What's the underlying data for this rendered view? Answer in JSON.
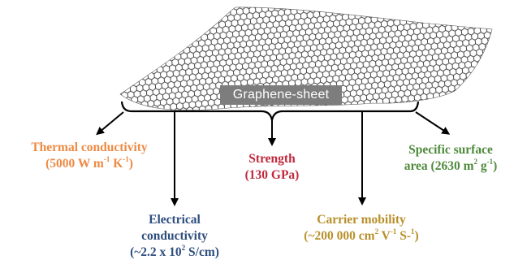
{
  "sheet_label": "Graphene-sheet",
  "colors": {
    "thermal": "#ee8a43",
    "strength": "#c0283c",
    "surface": "#4e8a3b",
    "electrical": "#2e4e7e",
    "carrier": "#b8902a",
    "label_bg": "#7d7d7d"
  },
  "properties": {
    "thermal": {
      "title": "Thermal conductivity",
      "value_prefix": "(5000 W m",
      "exp1": "-1",
      "mid": " K",
      "exp2": "-1",
      "suffix": ")"
    },
    "strength": {
      "title": "Strength",
      "value": "(130 GPa)"
    },
    "surface": {
      "title": "Specific surface",
      "line2_prefix": "area (2630 m",
      "exp1": "2",
      "mid": " g",
      "exp2": "-1",
      "suffix": ")"
    },
    "electrical": {
      "line1": "Electrical",
      "line2": "conductivity",
      "line3_prefix": "(~2.2 x 10",
      "exp": "2",
      "line3_suffix": " S/cm)"
    },
    "carrier": {
      "title": "Carrier mobility",
      "value_prefix": "(~200 000 cm",
      "exp1": "2",
      "mid1": " V",
      "exp2": "-1",
      "mid2": " S-",
      "exp3": "1",
      "suffix": ")"
    }
  }
}
